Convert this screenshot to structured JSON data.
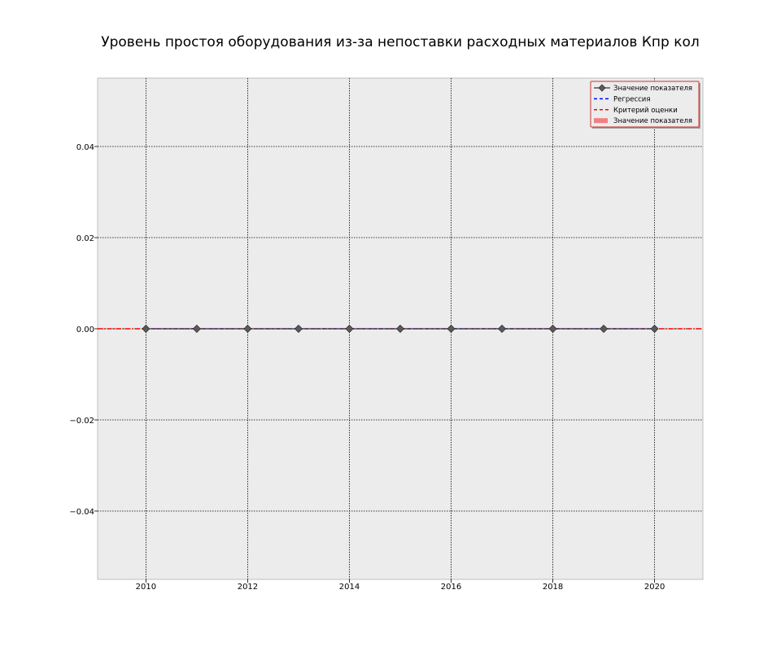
{
  "chart_data": {
    "type": "line",
    "title": "Уровень простоя оборудования из-за непоставки расходных материалов Кпр кол",
    "xlabel": "",
    "ylabel": "",
    "xlim": [
      2009.05,
      2020.95
    ],
    "ylim": [
      -0.055,
      0.055
    ],
    "x_ticks": [
      2010,
      2012,
      2014,
      2016,
      2018,
      2020
    ],
    "y_ticks": [
      -0.04,
      -0.02,
      0.0,
      0.02,
      0.04
    ],
    "x_tick_labels": [
      "2010",
      "2012",
      "2014",
      "2016",
      "2018",
      "2020"
    ],
    "y_tick_labels": [
      "−0.04",
      "−0.02",
      "0.00",
      "0.02",
      "0.04"
    ],
    "grid": true,
    "legend_position": "top-right",
    "series": [
      {
        "name": "Значение показателя",
        "kind": "line-marker",
        "color": "#555555",
        "marker": "diamond",
        "x": [
          2010,
          2011,
          2012,
          2013,
          2014,
          2015,
          2016,
          2017,
          2018,
          2019,
          2020
        ],
        "y": [
          0,
          0,
          0,
          0,
          0,
          0,
          0,
          0,
          0,
          0,
          0
        ]
      },
      {
        "name": "Регрессия",
        "kind": "dashed-line",
        "color": "#0000ff",
        "x": [
          2010,
          2020
        ],
        "y": [
          0,
          0
        ]
      },
      {
        "name": "Критерий оценки",
        "kind": "dashed-line",
        "color": "#ff0000",
        "x": [
          2009.05,
          2020.95
        ],
        "y": [
          0,
          0
        ]
      },
      {
        "name": "Значение показателя",
        "kind": "bar",
        "color": "#f08080",
        "x": [
          2010,
          2011,
          2012,
          2013,
          2014,
          2015,
          2016,
          2017,
          2018,
          2019,
          2020
        ],
        "y": [
          0,
          0,
          0,
          0,
          0,
          0,
          0,
          0,
          0,
          0,
          0
        ]
      }
    ]
  }
}
